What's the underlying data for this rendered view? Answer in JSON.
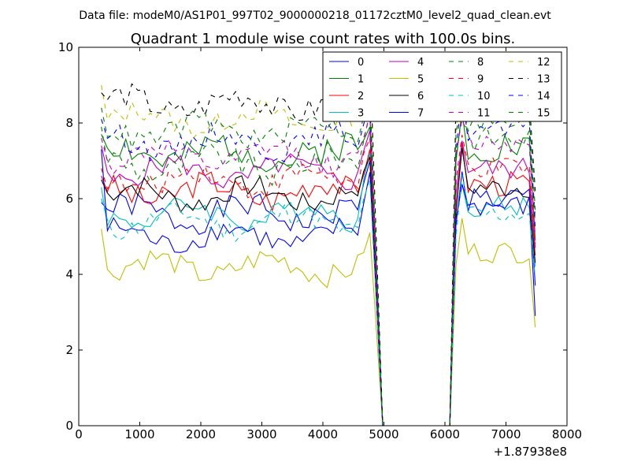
{
  "suptitle": "Data file: modeM0/AS1P01_997T02_9000000218_01172cztM0_level2_quad_clean.evt",
  "chart_data": {
    "type": "line",
    "title": "Quadrant 1 module wise count rates with 100.0s bins.",
    "xlabel": "",
    "ylabel": "",
    "xlim": [
      0,
      8000
    ],
    "ylim": [
      0,
      10
    ],
    "x_offset_label": "+1.87938e8",
    "x_ticks": [
      0,
      1000,
      2000,
      3000,
      4000,
      5000,
      6000,
      7000,
      8000
    ],
    "y_ticks": [
      0,
      2,
      4,
      6,
      8,
      10
    ],
    "legend_position": "top-right",
    "legend_columns": 4,
    "gap": {
      "start": 4780,
      "end": 6180,
      "drop_to": 4980,
      "rise_from": 6080
    },
    "x_bins": {
      "segment1": [
        370,
        4770,
        100
      ],
      "segment2": [
        6180,
        7480,
        100
      ]
    },
    "series": [
      {
        "name": "0",
        "color": "#0000ff",
        "style": "solid",
        "base": 5.6,
        "amp": 0.35,
        "seed": 1,
        "start": 5.9,
        "peak": 7.0,
        "seg2": 6.0,
        "end": 3.7
      },
      {
        "name": "1",
        "color": "#008000",
        "style": "solid",
        "base": 7.2,
        "amp": 0.45,
        "seed": 2,
        "start": 7.7,
        "peak": 7.9,
        "seg2": 7.4,
        "end": 4.9
      },
      {
        "name": "2",
        "color": "#ff0000",
        "style": "solid",
        "base": 6.2,
        "amp": 0.35,
        "seed": 3,
        "start": 6.6,
        "peak": 7.3,
        "seg2": 6.4,
        "end": 4.5
      },
      {
        "name": "3",
        "color": "#00bfbf",
        "style": "solid",
        "base": 5.6,
        "amp": 0.3,
        "seed": 4,
        "start": 6.3,
        "peak": 7.2,
        "seg2": 5.8,
        "end": 4.2
      },
      {
        "name": "4",
        "color": "#bf00bf",
        "style": "solid",
        "base": 6.7,
        "amp": 0.3,
        "seed": 5,
        "start": 7.4,
        "peak": 7.8,
        "seg2": 6.8,
        "end": 4.7
      },
      {
        "name": "5",
        "color": "#bfbf00",
        "style": "solid",
        "base": 4.2,
        "amp": 0.3,
        "seed": 6,
        "start": 5.2,
        "peak": 5.1,
        "seg2": 4.6,
        "end": 2.6
      },
      {
        "name": "6",
        "color": "#000000",
        "style": "solid",
        "base": 6.1,
        "amp": 0.3,
        "seed": 7,
        "start": 6.5,
        "peak": 7.1,
        "seg2": 6.3,
        "end": 4.3
      },
      {
        "name": "7",
        "color": "#0000ff",
        "style": "solid",
        "base": 5.0,
        "amp": 0.3,
        "seed": 8,
        "start": 7.3,
        "peak": 6.7,
        "seg2": 5.8,
        "end": 2.9
      },
      {
        "name": "8",
        "color": "#008000",
        "style": "dashed",
        "base": 6.9,
        "amp": 0.35,
        "seed": 9,
        "start": 7.9,
        "peak": 8.3,
        "seg2": 7.6,
        "end": 5.5
      },
      {
        "name": "9",
        "color": "#ff0000",
        "style": "dashed",
        "base": 6.5,
        "amp": 0.3,
        "seed": 10,
        "start": 6.8,
        "peak": 7.6,
        "seg2": 6.8,
        "end": 4.8
      },
      {
        "name": "10",
        "color": "#00bfbf",
        "style": "dashed",
        "base": 5.4,
        "amp": 0.3,
        "seed": 11,
        "start": 6.0,
        "peak": 6.5,
        "seg2": 5.6,
        "end": 3.9
      },
      {
        "name": "11",
        "color": "#bf00bf",
        "style": "dashed",
        "base": 7.1,
        "amp": 0.3,
        "seed": 12,
        "start": 7.6,
        "peak": 8.2,
        "seg2": 7.5,
        "end": 5.0
      },
      {
        "name": "12",
        "color": "#bfbf00",
        "style": "dashed",
        "base": 8.1,
        "amp": 0.3,
        "seed": 13,
        "start": 9.0,
        "peak": 9.6,
        "seg2": 8.4,
        "end": 5.4
      },
      {
        "name": "13",
        "color": "#000000",
        "style": "dashed",
        "base": 8.5,
        "amp": 0.35,
        "seed": 14,
        "start": 8.8,
        "peak": 9.8,
        "seg2": 8.9,
        "end": 6.2
      },
      {
        "name": "14",
        "color": "#0000ff",
        "style": "dashed",
        "base": 7.5,
        "amp": 0.3,
        "seed": 15,
        "start": 8.1,
        "peak": 8.5,
        "seg2": 7.8,
        "end": 5.2
      },
      {
        "name": "15",
        "color": "#008000",
        "style": "dashed",
        "base": 7.8,
        "amp": 0.3,
        "seed": 16,
        "start": 8.4,
        "peak": 8.8,
        "seg2": 8.0,
        "end": 5.7
      }
    ]
  }
}
